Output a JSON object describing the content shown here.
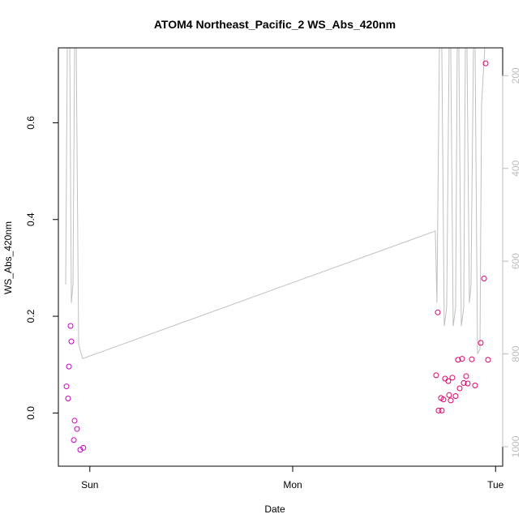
{
  "chart_data": {
    "type": "scatter",
    "title": "ATOM4 Northeast_Pacific_2 WS_Abs_420nm",
    "xlabel": "Date",
    "ylabel": "WS_Abs_420nm",
    "x_ticks": [
      {
        "label": "Sun",
        "day": 0
      },
      {
        "label": "Mon",
        "day": 1
      },
      {
        "label": "Tue",
        "day": 2
      }
    ],
    "xlim_days": [
      -0.155,
      2.035
    ],
    "ylim": [
      -0.11,
      0.755
    ],
    "y_ticks": [
      0.0,
      0.2,
      0.4,
      0.6
    ],
    "y2_ticks": [
      200,
      400,
      600,
      800,
      1000
    ],
    "y2lim_reversed": [
      1042,
      140
    ],
    "grid": false,
    "colors": {
      "points_left": "#c800c8",
      "points_right": "#e0006c",
      "altitude_line": "#c0c0c0"
    },
    "series": [
      {
        "kind": "points",
        "axis": "left",
        "points": [
          {
            "day": -0.115,
            "value": 0.055
          },
          {
            "day": -0.107,
            "value": 0.03
          },
          {
            "day": -0.103,
            "value": 0.096
          },
          {
            "day": -0.095,
            "value": 0.18
          },
          {
            "day": -0.091,
            "value": 0.148
          },
          {
            "day": -0.079,
            "value": -0.056
          },
          {
            "day": -0.075,
            "value": -0.016
          },
          {
            "day": -0.063,
            "value": -0.033
          },
          {
            "day": -0.047,
            "value": -0.076
          },
          {
            "day": -0.032,
            "value": -0.072
          },
          {
            "day": 1.707,
            "value": 0.078
          },
          {
            "day": 1.715,
            "value": 0.208
          },
          {
            "day": 1.719,
            "value": 0.005
          },
          {
            "day": 1.731,
            "value": 0.031
          },
          {
            "day": 1.735,
            "value": 0.005
          },
          {
            "day": 1.743,
            "value": 0.028
          },
          {
            "day": 1.751,
            "value": 0.071
          },
          {
            "day": 1.767,
            "value": 0.066
          },
          {
            "day": 1.771,
            "value": 0.037
          },
          {
            "day": 1.779,
            "value": 0.026
          },
          {
            "day": 1.787,
            "value": 0.073
          },
          {
            "day": 1.803,
            "value": 0.035
          },
          {
            "day": 1.815,
            "value": 0.11
          },
          {
            "day": 1.823,
            "value": 0.051
          },
          {
            "day": 1.835,
            "value": 0.112
          },
          {
            "day": 1.843,
            "value": 0.062
          },
          {
            "day": 1.855,
            "value": 0.076
          },
          {
            "day": 1.863,
            "value": 0.061
          },
          {
            "day": 1.883,
            "value": 0.111
          },
          {
            "day": 1.899,
            "value": 0.057
          },
          {
            "day": 1.927,
            "value": 0.145
          },
          {
            "day": 1.943,
            "value": 0.278
          },
          {
            "day": 1.951,
            "value": 0.723
          },
          {
            "day": 1.963,
            "value": 0.11
          }
        ]
      },
      {
        "kind": "line",
        "axis": "right",
        "points": [
          {
            "day": -0.119,
            "alt": 650
          },
          {
            "day": -0.111,
            "alt": 140
          },
          {
            "day": -0.099,
            "alt": 140
          },
          {
            "day": -0.091,
            "alt": 690
          },
          {
            "day": -0.083,
            "alt": 650
          },
          {
            "day": -0.075,
            "alt": 140
          },
          {
            "day": -0.067,
            "alt": 140
          },
          {
            "day": -0.055,
            "alt": 780
          },
          {
            "day": -0.035,
            "alt": 810
          },
          {
            "day": 1.703,
            "alt": 535
          },
          {
            "day": 1.711,
            "alt": 690
          },
          {
            "day": 1.723,
            "alt": 140
          },
          {
            "day": 1.735,
            "alt": 140
          },
          {
            "day": 1.747,
            "alt": 740
          },
          {
            "day": 1.759,
            "alt": 700
          },
          {
            "day": 1.771,
            "alt": 140
          },
          {
            "day": 1.779,
            "alt": 140
          },
          {
            "day": 1.791,
            "alt": 740
          },
          {
            "day": 1.803,
            "alt": 700
          },
          {
            "day": 1.811,
            "alt": 140
          },
          {
            "day": 1.819,
            "alt": 140
          },
          {
            "day": 1.831,
            "alt": 740
          },
          {
            "day": 1.843,
            "alt": 700
          },
          {
            "day": 1.851,
            "alt": 140
          },
          {
            "day": 1.859,
            "alt": 140
          },
          {
            "day": 1.871,
            "alt": 690
          },
          {
            "day": 1.879,
            "alt": 650
          },
          {
            "day": 1.891,
            "alt": 140
          },
          {
            "day": 1.899,
            "alt": 140
          },
          {
            "day": 1.911,
            "alt": 800
          },
          {
            "day": 1.923,
            "alt": 790
          },
          {
            "day": 1.931,
            "alt": 260
          },
          {
            "day": 1.947,
            "alt": 140
          }
        ]
      }
    ]
  }
}
